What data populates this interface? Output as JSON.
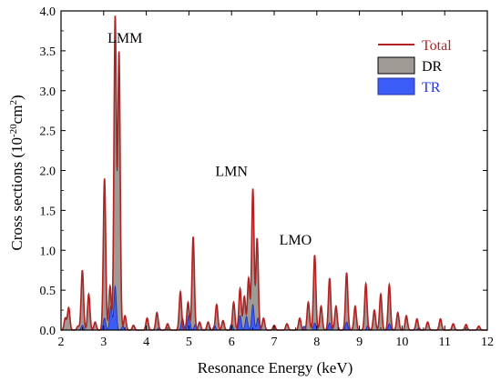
{
  "chart_data": {
    "type": "area",
    "title": "",
    "xlabel": "Resonance Energy (keV)",
    "ylabel_main": "Cross sections (10",
    "ylabel_exp": "-20",
    "ylabel_unit": "cm",
    "ylabel_unit_exp": "2",
    "ylabel_close": ")",
    "xlim": [
      2,
      12
    ],
    "ylim": [
      0,
      4
    ],
    "xticks": [
      2,
      3,
      4,
      5,
      6,
      7,
      8,
      9,
      10,
      11,
      12
    ],
    "yticks": [
      0.0,
      0.5,
      1.0,
      1.5,
      2.0,
      2.5,
      3.0,
      3.5,
      4.0
    ],
    "ytick_labels": [
      "0.0",
      "0.5",
      "1.0",
      "1.5",
      "2.0",
      "2.5",
      "3.0",
      "3.5",
      "4.0"
    ],
    "legend_position": "top-right",
    "colors": {
      "total": "#b22222",
      "dr": "#a09a94",
      "tr": "#3b5cf5"
    },
    "annotations": [
      {
        "text": "LMM",
        "x": 3.5,
        "y": 3.6
      },
      {
        "text": "LMN",
        "x": 6.0,
        "y": 1.93
      },
      {
        "text": "LMO",
        "x": 7.5,
        "y": 1.07
      }
    ],
    "series": [
      {
        "name": "Total",
        "style": "line",
        "peaks": [
          [
            2.1,
            0.15
          ],
          [
            2.18,
            0.28
          ],
          [
            2.4,
            0.05
          ],
          [
            2.5,
            0.75
          ],
          [
            2.65,
            0.45
          ],
          [
            2.8,
            0.1
          ],
          [
            3.02,
            1.9
          ],
          [
            3.15,
            0.55
          ],
          [
            3.27,
            3.92
          ],
          [
            3.36,
            3.47
          ],
          [
            3.5,
            0.18
          ],
          [
            3.7,
            0.06
          ],
          [
            4.02,
            0.15
          ],
          [
            4.25,
            0.22
          ],
          [
            4.5,
            0.08
          ],
          [
            4.8,
            0.48
          ],
          [
            4.98,
            0.35
          ],
          [
            5.1,
            1.17
          ],
          [
            5.25,
            0.1
          ],
          [
            5.45,
            0.1
          ],
          [
            5.65,
            0.32
          ],
          [
            5.8,
            0.12
          ],
          [
            6.05,
            0.35
          ],
          [
            6.2,
            0.52
          ],
          [
            6.3,
            0.42
          ],
          [
            6.4,
            0.65
          ],
          [
            6.5,
            1.77
          ],
          [
            6.6,
            1.15
          ],
          [
            6.75,
            0.15
          ],
          [
            7.0,
            0.06
          ],
          [
            7.3,
            0.08
          ],
          [
            7.6,
            0.15
          ],
          [
            7.8,
            0.35
          ],
          [
            7.95,
            0.94
          ],
          [
            8.1,
            0.3
          ],
          [
            8.3,
            0.65
          ],
          [
            8.45,
            0.3
          ],
          [
            8.7,
            0.72
          ],
          [
            8.9,
            0.3
          ],
          [
            9.15,
            0.58
          ],
          [
            9.35,
            0.25
          ],
          [
            9.5,
            0.45
          ],
          [
            9.7,
            0.57
          ],
          [
            9.9,
            0.22
          ],
          [
            10.1,
            0.18
          ],
          [
            10.35,
            0.14
          ],
          [
            10.6,
            0.1
          ],
          [
            10.9,
            0.14
          ],
          [
            11.2,
            0.08
          ],
          [
            11.5,
            0.07
          ],
          [
            11.8,
            0.05
          ]
        ]
      },
      {
        "name": "DR",
        "style": "area",
        "peaks": [
          [
            2.1,
            0.14
          ],
          [
            2.18,
            0.26
          ],
          [
            2.4,
            0.05
          ],
          [
            2.5,
            0.72
          ],
          [
            2.65,
            0.42
          ],
          [
            2.8,
            0.09
          ],
          [
            3.02,
            1.8
          ],
          [
            3.15,
            0.5
          ],
          [
            3.27,
            3.85
          ],
          [
            3.36,
            3.4
          ],
          [
            3.5,
            0.16
          ],
          [
            3.7,
            0.05
          ],
          [
            4.02,
            0.13
          ],
          [
            4.25,
            0.2
          ],
          [
            4.5,
            0.07
          ],
          [
            4.8,
            0.45
          ],
          [
            4.98,
            0.32
          ],
          [
            5.1,
            1.12
          ],
          [
            5.25,
            0.09
          ],
          [
            5.45,
            0.09
          ],
          [
            5.65,
            0.29
          ],
          [
            5.8,
            0.1
          ],
          [
            6.05,
            0.32
          ],
          [
            6.2,
            0.48
          ],
          [
            6.3,
            0.38
          ],
          [
            6.4,
            0.6
          ],
          [
            6.5,
            1.72
          ],
          [
            6.6,
            1.1
          ],
          [
            6.75,
            0.13
          ],
          [
            7.0,
            0.05
          ],
          [
            7.3,
            0.07
          ],
          [
            7.6,
            0.13
          ],
          [
            7.8,
            0.32
          ],
          [
            7.95,
            0.9
          ],
          [
            8.1,
            0.27
          ],
          [
            8.3,
            0.6
          ],
          [
            8.45,
            0.27
          ],
          [
            8.7,
            0.68
          ],
          [
            8.9,
            0.27
          ],
          [
            9.15,
            0.54
          ],
          [
            9.35,
            0.22
          ],
          [
            9.5,
            0.42
          ],
          [
            9.7,
            0.53
          ],
          [
            9.9,
            0.2
          ],
          [
            10.1,
            0.16
          ],
          [
            10.35,
            0.12
          ],
          [
            10.6,
            0.09
          ],
          [
            10.9,
            0.12
          ],
          [
            11.2,
            0.07
          ],
          [
            11.5,
            0.06
          ],
          [
            11.8,
            0.04
          ]
        ]
      },
      {
        "name": "TR",
        "style": "area",
        "peaks": [
          [
            2.5,
            0.06
          ],
          [
            3.02,
            0.15
          ],
          [
            3.17,
            0.3
          ],
          [
            3.27,
            0.55
          ],
          [
            3.45,
            0.05
          ],
          [
            4.3,
            0.03
          ],
          [
            4.85,
            0.15
          ],
          [
            5.0,
            0.19
          ],
          [
            5.15,
            0.07
          ],
          [
            5.6,
            0.06
          ],
          [
            6.0,
            0.08
          ],
          [
            6.2,
            0.18
          ],
          [
            6.35,
            0.17
          ],
          [
            6.5,
            0.32
          ],
          [
            6.62,
            0.15
          ],
          [
            7.7,
            0.05
          ],
          [
            7.95,
            0.09
          ],
          [
            8.3,
            0.09
          ],
          [
            8.7,
            0.1
          ],
          [
            9.2,
            0.06
          ],
          [
            9.7,
            0.08
          ],
          [
            10.4,
            0.03
          ]
        ]
      }
    ]
  }
}
